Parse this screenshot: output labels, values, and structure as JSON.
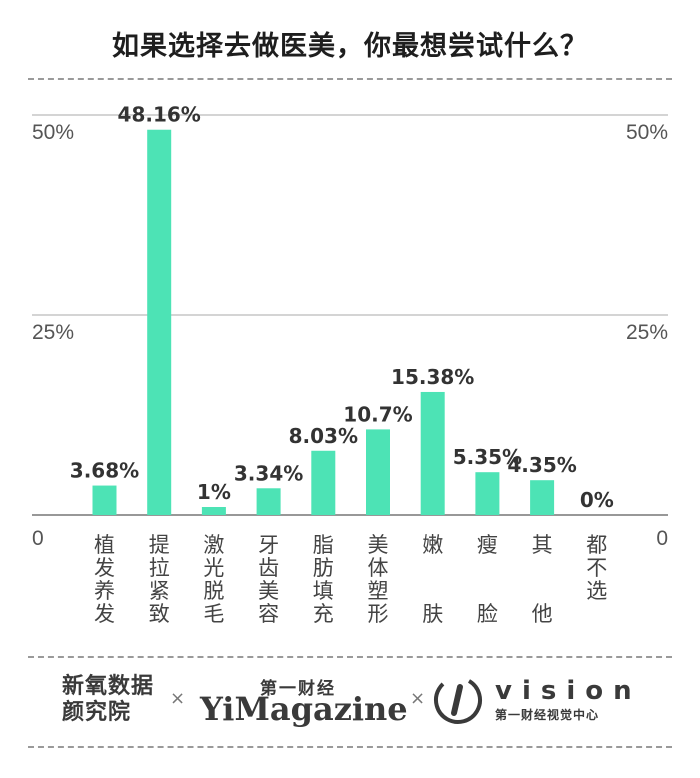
{
  "title": "如果选择去做医美，你最想尝试什么？",
  "chart_data": {
    "type": "bar",
    "categories": [
      "植发养发",
      "提拉紧致",
      "激光脱毛",
      "牙齿美容",
      "脂肪填充",
      "美体塑形",
      "嫩肤",
      "瘦脸",
      "其他",
      "都不选"
    ],
    "value_labels": [
      "3.68%",
      "48.16%",
      "1%",
      "3.34%",
      "8.03%",
      "10.7%",
      "15.38%",
      "5.35%",
      "4.35%",
      "0%"
    ],
    "values": [
      3.68,
      48.16,
      1,
      3.34,
      8.03,
      10.7,
      15.38,
      5.35,
      4.35,
      0
    ],
    "ylim": [
      0,
      55
    ],
    "yticks": [
      {
        "value": 0,
        "label": "0"
      },
      {
        "value": 25,
        "label": "25%"
      },
      {
        "value": 50,
        "label": "50%"
      }
    ],
    "grid": true,
    "bar_color": "#4de3b5"
  },
  "footer": {
    "brand1": "新氧数据颜究院",
    "separator": "×",
    "brand2_top": "第一财经",
    "brand2_main": "YiMagazine",
    "brand3_word": "vision",
    "brand3_sub": "第一财经视觉中心"
  }
}
